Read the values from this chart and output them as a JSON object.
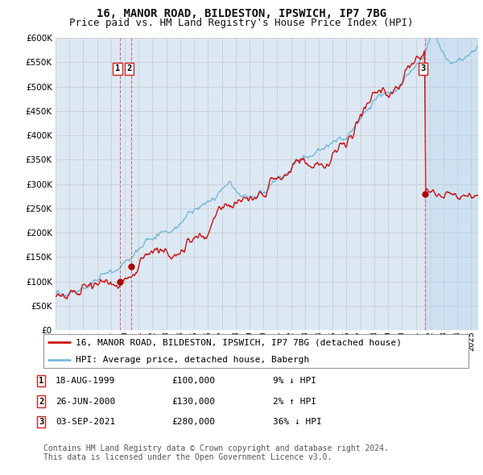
{
  "title": "16, MANOR ROAD, BILDESTON, IPSWICH, IP7 7BG",
  "subtitle": "Price paid vs. HM Land Registry's House Price Index (HPI)",
  "ylim": [
    0,
    600000
  ],
  "yticks": [
    0,
    50000,
    100000,
    150000,
    200000,
    250000,
    300000,
    350000,
    400000,
    450000,
    500000,
    550000,
    600000
  ],
  "ytick_labels": [
    "£0",
    "£50K",
    "£100K",
    "£150K",
    "£200K",
    "£250K",
    "£300K",
    "£350K",
    "£400K",
    "£450K",
    "£500K",
    "£550K",
    "£600K"
  ],
  "xlim_start": 1995.0,
  "xlim_end": 2025.5,
  "hpi_color": "#7ab8d9",
  "price_color": "#cc1111",
  "sale_dot_color": "#aa0000",
  "vline_color": "#dd4444",
  "background_color": "#dce9f5",
  "shade_color": "#c8dff5",
  "grid_color": "#cccccc",
  "sales": [
    {
      "year": 1999.625,
      "price": 100000,
      "label": "1"
    },
    {
      "year": 2000.479,
      "price": 130000,
      "label": "2"
    },
    {
      "year": 2021.67,
      "price": 280000,
      "label": "3"
    }
  ],
  "legend_entries": [
    {
      "label": "16, MANOR ROAD, BILDESTON, IPSWICH, IP7 7BG (detached house)",
      "color": "#cc1111"
    },
    {
      "label": "HPI: Average price, detached house, Babergh",
      "color": "#7ab8d9"
    }
  ],
  "table_rows": [
    {
      "num": "1",
      "date": "18-AUG-1999",
      "price": "£100,000",
      "hpi": "9% ↓ HPI"
    },
    {
      "num": "2",
      "date": "26-JUN-2000",
      "price": "£130,000",
      "hpi": "2% ↑ HPI"
    },
    {
      "num": "3",
      "date": "03-SEP-2021",
      "price": "£280,000",
      "hpi": "36% ↓ HPI"
    }
  ],
  "footnote": "Contains HM Land Registry data © Crown copyright and database right 2024.\nThis data is licensed under the Open Government Licence v3.0.",
  "title_fontsize": 10,
  "subtitle_fontsize": 9,
  "tick_fontsize": 7.5,
  "legend_fontsize": 8,
  "table_fontsize": 8,
  "footnote_fontsize": 7
}
